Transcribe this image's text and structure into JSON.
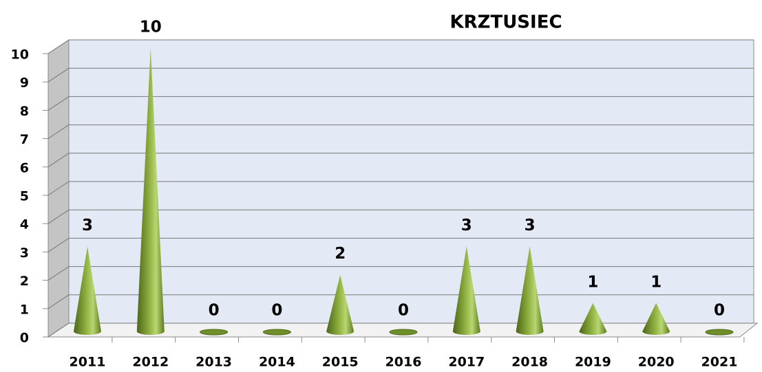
{
  "chart_data": {
    "type": "bar",
    "title": "KRZTUSIEC",
    "categories": [
      "2011",
      "2012",
      "2013",
      "2014",
      "2015",
      "2016",
      "2017",
      "2018",
      "2019",
      "2020",
      "2021"
    ],
    "values": [
      3,
      10,
      0,
      0,
      2,
      0,
      3,
      3,
      1,
      1,
      0
    ],
    "color": "#6e8f2a",
    "ylim": [
      0,
      10
    ],
    "yticks": [
      0,
      1,
      2,
      3,
      4,
      5,
      6,
      7,
      8,
      9,
      10
    ],
    "grid": true
  }
}
